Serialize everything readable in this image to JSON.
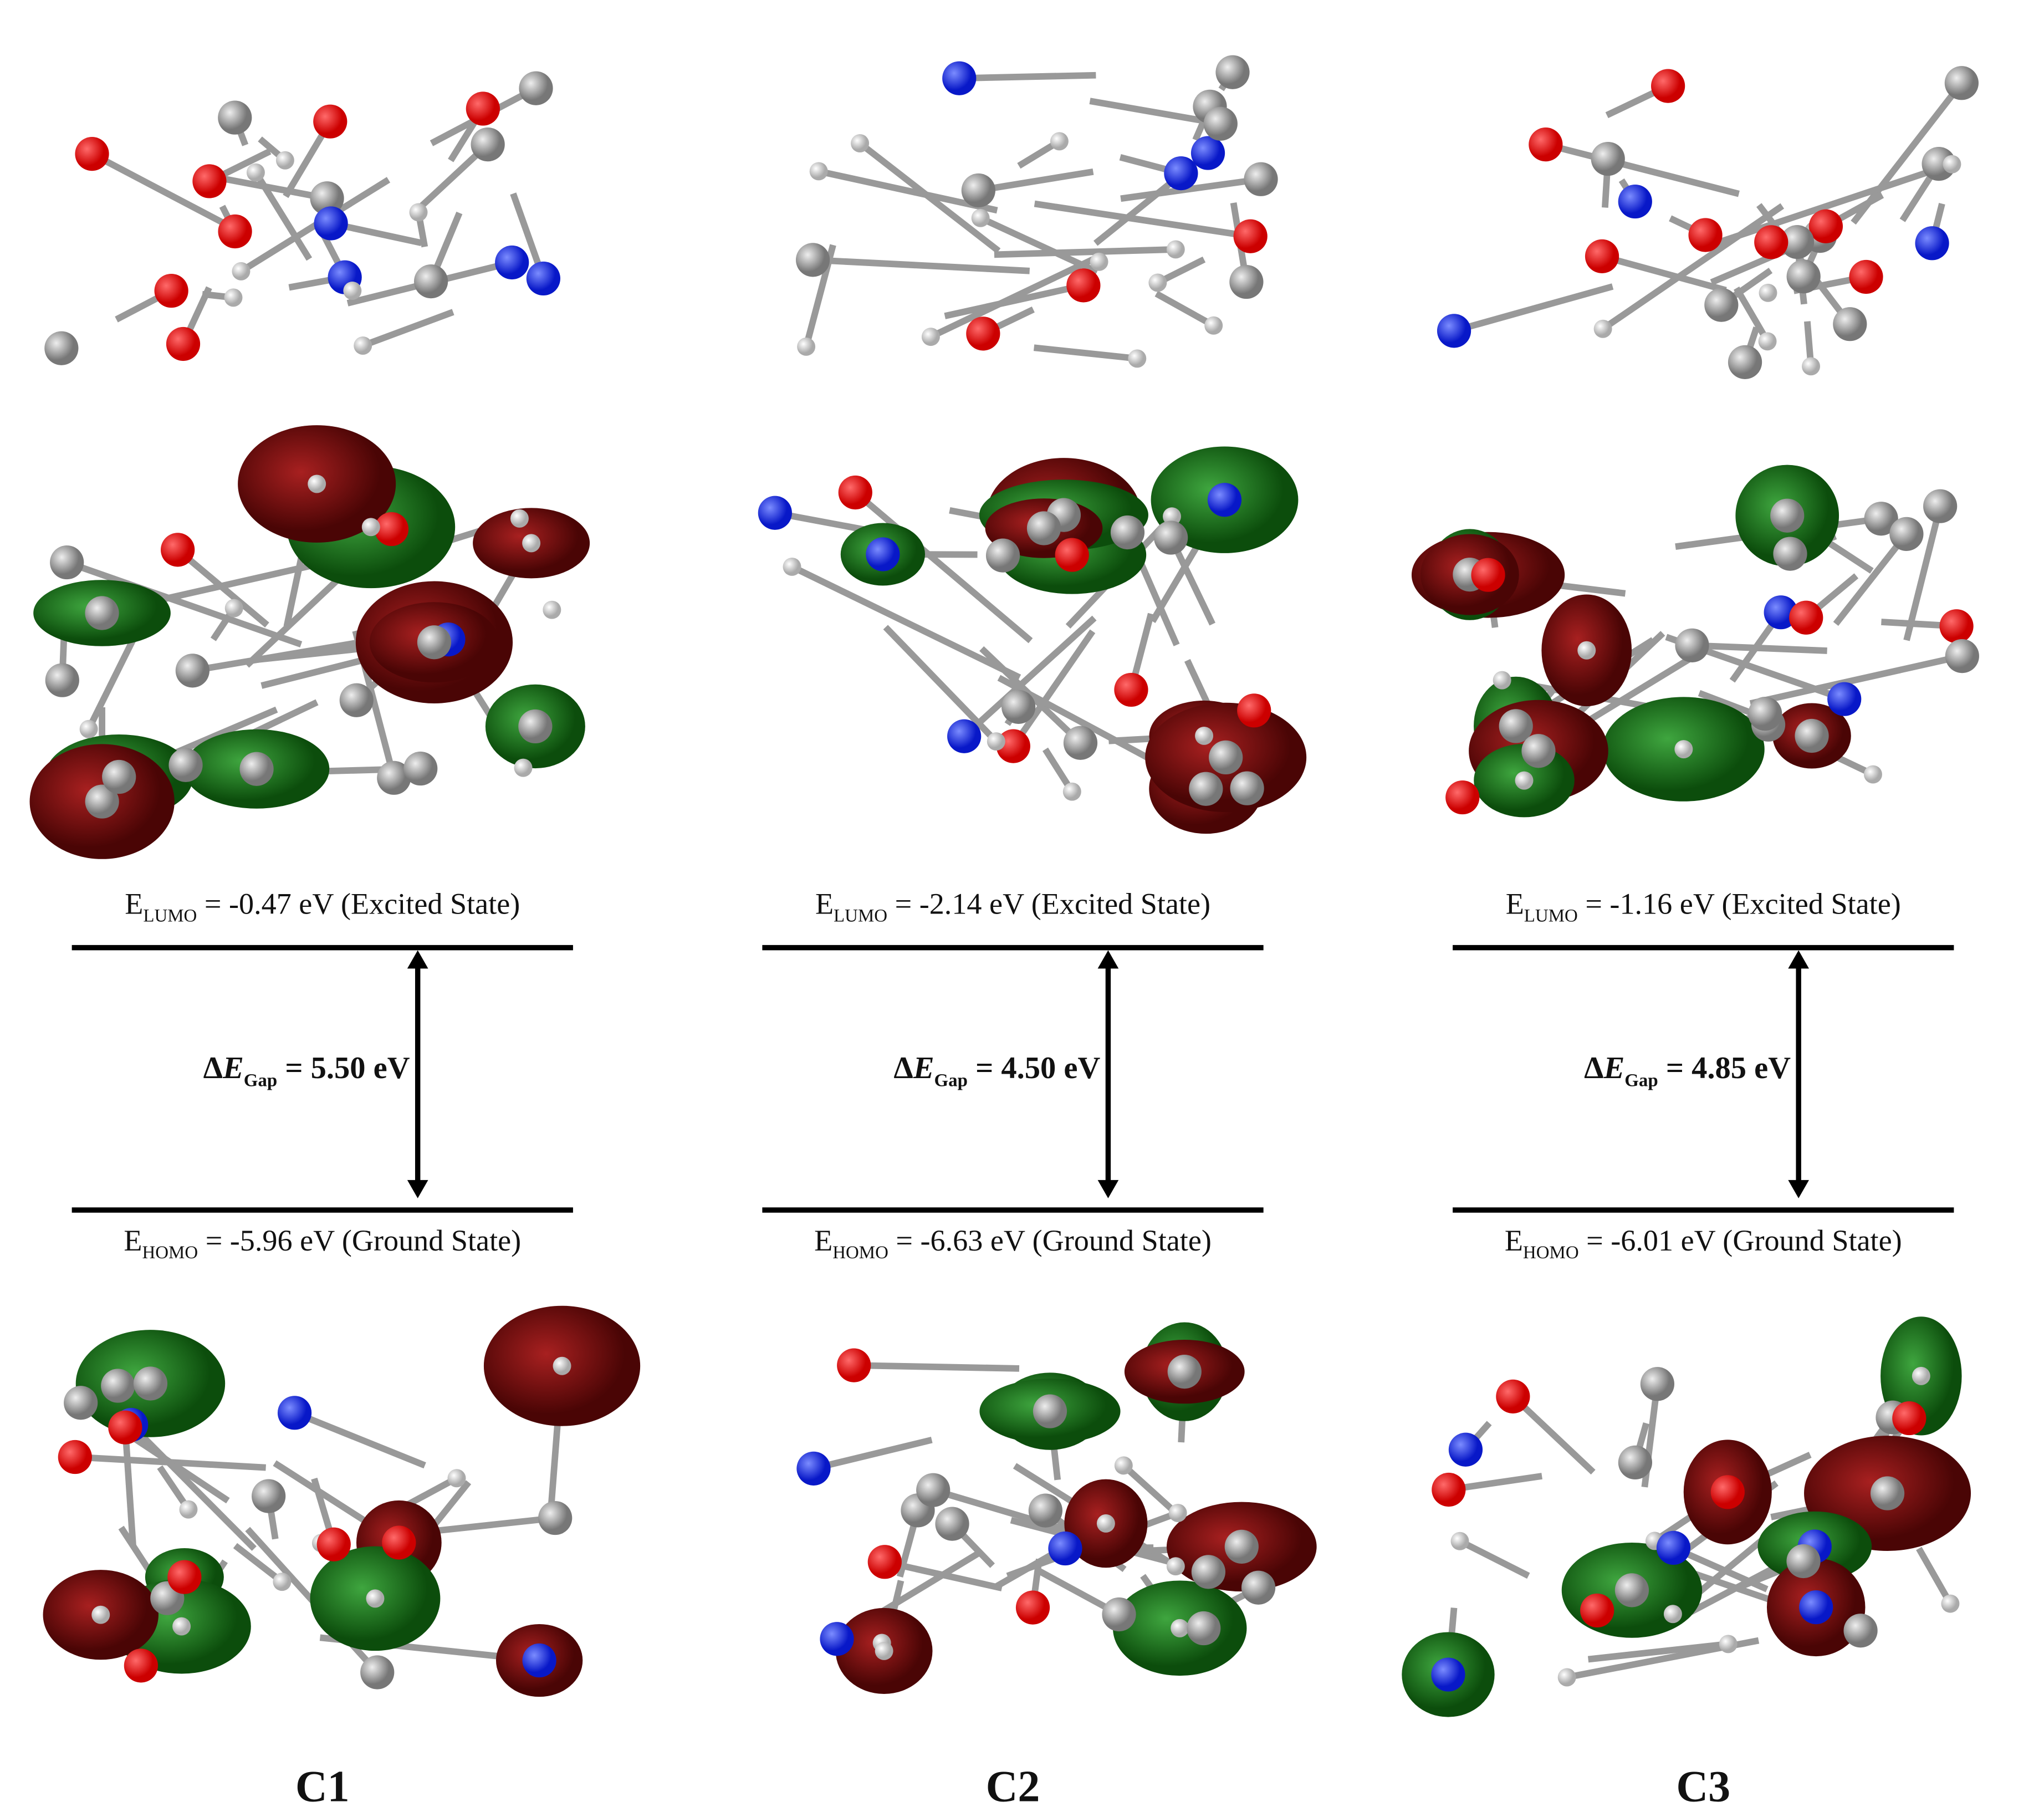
{
  "columns": [
    {
      "label": "C1",
      "lumo": {
        "symbol": "E",
        "subscript": "LUMO",
        "text": " = -0.47 eV (Excited State)"
      },
      "gap": {
        "delta": "Δ",
        "symbol": "E",
        "subscript": "Gap",
        "text": " = 5.50 eV"
      },
      "homo": {
        "symbol": "E",
        "subscript": "HOMO",
        "text": " = -5.96 eV (Ground State)"
      }
    },
    {
      "label": "C2",
      "lumo": {
        "symbol": "E",
        "subscript": "LUMO",
        "text": " = -2.14 eV (Excited State)"
      },
      "gap": {
        "delta": "Δ",
        "symbol": "E",
        "subscript": "Gap",
        "text": "  = 4.50 eV"
      },
      "homo": {
        "symbol": "E",
        "subscript": "HOMO",
        "text": " = -6.63 eV (Ground State)"
      }
    },
    {
      "label": "C3",
      "lumo": {
        "symbol": "E",
        "subscript": "LUMO",
        "text": " = -1.16 eV (Excited State)"
      },
      "gap": {
        "delta": "Δ",
        "symbol": "E",
        "subscript": "Gap",
        "text": "  = 4.85 eV"
      },
      "homo": {
        "symbol": "E",
        "subscript": "HOMO",
        "text": " = -6.01 eV (Ground State)"
      }
    }
  ]
}
